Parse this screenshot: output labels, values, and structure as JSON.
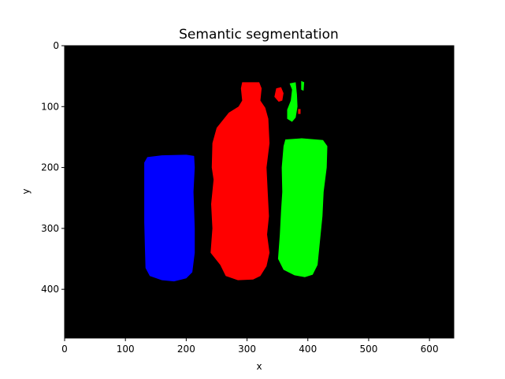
{
  "chart_data": {
    "type": "heatmap",
    "title": "Semantic segmentation",
    "xlabel": "x",
    "ylabel": "y",
    "xlim": [
      0,
      640
    ],
    "ylim": [
      480,
      0
    ],
    "y_inverted": true,
    "xticks": [
      0,
      100,
      200,
      300,
      400,
      500,
      600
    ],
    "yticks": [
      0,
      100,
      200,
      300,
      400
    ],
    "background_color": "#000000",
    "grid": false,
    "segments": [
      {
        "color": "#0000ff",
        "outline": [
          [
            131,
            192
          ],
          [
            136,
            183
          ],
          [
            160,
            180
          ],
          [
            200,
            179
          ],
          [
            213,
            181
          ],
          [
            214,
            200
          ],
          [
            212,
            240
          ],
          [
            214,
            300
          ],
          [
            214,
            340
          ],
          [
            210,
            372
          ],
          [
            200,
            382
          ],
          [
            180,
            387
          ],
          [
            160,
            385
          ],
          [
            140,
            378
          ],
          [
            133,
            365
          ],
          [
            132,
            330
          ],
          [
            131,
            290
          ],
          [
            131,
            240
          ]
        ]
      },
      {
        "color": "#ff0000",
        "outline": [
          [
            292,
            60
          ],
          [
            320,
            60
          ],
          [
            324,
            70
          ],
          [
            322,
            90
          ],
          [
            330,
            102
          ],
          [
            335,
            120
          ],
          [
            337,
            160
          ],
          [
            332,
            200
          ],
          [
            334,
            240
          ],
          [
            336,
            280
          ],
          [
            333,
            310
          ],
          [
            337,
            340
          ],
          [
            332,
            362
          ],
          [
            322,
            378
          ],
          [
            310,
            384
          ],
          [
            285,
            385
          ],
          [
            265,
            378
          ],
          [
            256,
            360
          ],
          [
            240,
            340
          ],
          [
            243,
            300
          ],
          [
            241,
            260
          ],
          [
            245,
            220
          ],
          [
            242,
            200
          ],
          [
            243,
            160
          ],
          [
            250,
            135
          ],
          [
            270,
            110
          ],
          [
            286,
            100
          ],
          [
            292,
            90
          ],
          [
            290,
            70
          ]
        ]
      },
      {
        "color": "#00ff00",
        "outline": [
          [
            363,
            154
          ],
          [
            390,
            152
          ],
          [
            425,
            155
          ],
          [
            432,
            165
          ],
          [
            431,
            200
          ],
          [
            426,
            240
          ],
          [
            424,
            280
          ],
          [
            420,
            320
          ],
          [
            416,
            360
          ],
          [
            408,
            376
          ],
          [
            395,
            380
          ],
          [
            378,
            377
          ],
          [
            360,
            368
          ],
          [
            351,
            350
          ],
          [
            354,
            310
          ],
          [
            356,
            270
          ],
          [
            358,
            240
          ],
          [
            357,
            200
          ],
          [
            360,
            165
          ]
        ]
      },
      {
        "color": "#00ff00",
        "outline": [
          [
            370,
            62
          ],
          [
            380,
            60
          ],
          [
            382,
            80
          ],
          [
            383,
            100
          ],
          [
            380,
            118
          ],
          [
            374,
            125
          ],
          [
            366,
            120
          ],
          [
            366,
            105
          ],
          [
            372,
            90
          ],
          [
            374,
            72
          ]
        ]
      },
      {
        "color": "#00ff00",
        "outline": [
          [
            389,
            58
          ],
          [
            394,
            60
          ],
          [
            393,
            74
          ],
          [
            389,
            72
          ]
        ]
      },
      {
        "color": "#ff0000",
        "outline": [
          [
            348,
            70
          ],
          [
            356,
            68
          ],
          [
            360,
            78
          ],
          [
            358,
            90
          ],
          [
            352,
            92
          ],
          [
            345,
            84
          ]
        ]
      },
      {
        "color": "#ff0000",
        "outline": [
          [
            384,
            104
          ],
          [
            388,
            104
          ],
          [
            388,
            112
          ],
          [
            384,
            112
          ]
        ]
      }
    ]
  }
}
